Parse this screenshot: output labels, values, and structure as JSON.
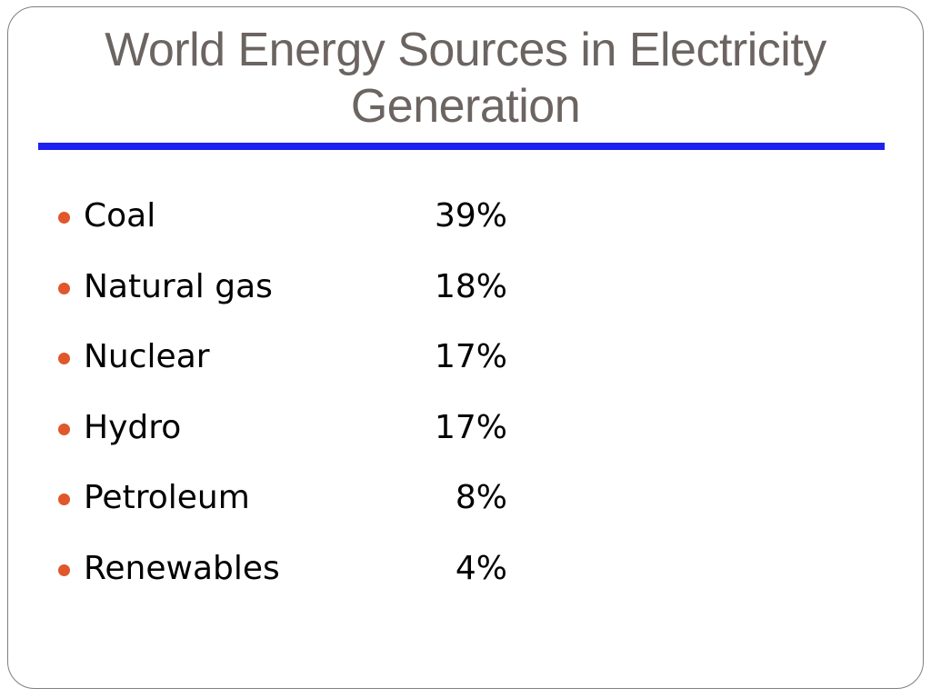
{
  "slide": {
    "title_lines": [
      "World Energy Sources in Electricity",
      "Generation"
    ],
    "accent_color": "#1e22f0",
    "bullet_color": "#e0572b",
    "items": [
      {
        "label": "Coal",
        "value": "39%"
      },
      {
        "label": "Natural gas",
        "value": "18%"
      },
      {
        "label": "Nuclear",
        "value": "17%"
      },
      {
        "label": "Hydro",
        "value": "17%"
      },
      {
        "label": "Petroleum",
        "value": "8%"
      },
      {
        "label": "Renewables",
        "value": "4%"
      }
    ]
  }
}
